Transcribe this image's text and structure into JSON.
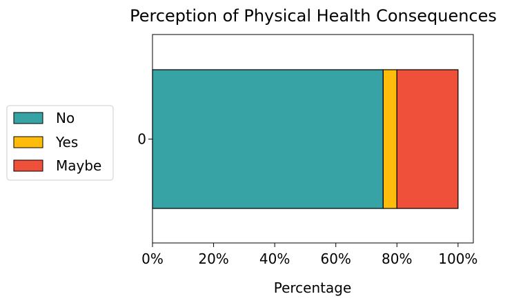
{
  "chart_data": {
    "type": "bar",
    "orientation": "horizontal",
    "stacked": true,
    "title": "Perception of Physical Health Consequences",
    "xlabel": "Percentage",
    "ylabel": "",
    "xlim": [
      0,
      105
    ],
    "x_ticks": [
      0,
      20,
      40,
      60,
      80,
      100
    ],
    "x_tick_labels": [
      "0%",
      "20%",
      "40%",
      "60%",
      "80%",
      "100%"
    ],
    "categories": [
      "0"
    ],
    "series": [
      {
        "name": "No",
        "values": [
          75.5
        ],
        "color": "#38A3A5"
      },
      {
        "name": "Yes",
        "values": [
          4.5
        ],
        "color": "#FFBC0A"
      },
      {
        "name": "Maybe",
        "values": [
          20.0
        ],
        "color": "#EF5039"
      }
    ],
    "grid": false,
    "legend_position": "left"
  }
}
